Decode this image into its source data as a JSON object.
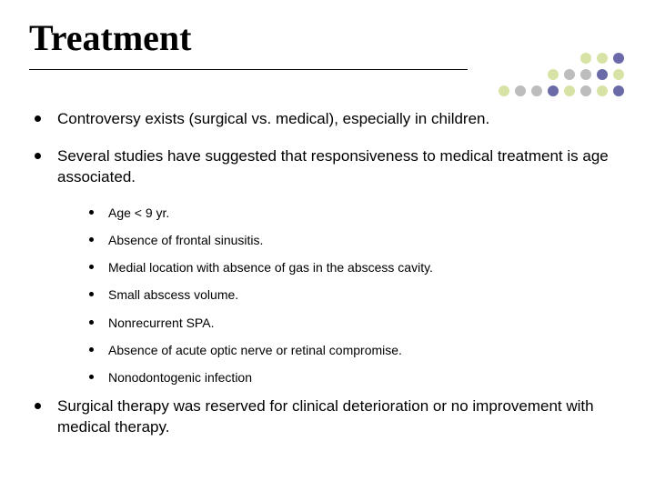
{
  "title": "Treatment",
  "bullets": {
    "b1": "Controversy exists (surgical vs. medical), especially in children.",
    "b2": "Several studies have suggested that responsiveness to medical treatment is age associated.",
    "b3": "Surgical therapy was reserved for clinical deterioration or no improvement with medical therapy."
  },
  "sub": {
    "s1": "Age < 9 yr.",
    "s2": "Absence of frontal sinusitis.",
    "s3": "Medial location with absence of gas in the abscess cavity.",
    "s4": "Small abscess volume.",
    "s5": "Nonrecurrent SPA.",
    "s6": "Absence of acute optic nerve or retinal compromise.",
    "s7": "Nonodontogenic infection"
  },
  "dot_colors": {
    "r0": [
      "",
      "",
      "",
      "",
      "",
      "#d6e3a5",
      "#d6e3a5",
      "#6a6aa8"
    ],
    "r1": [
      "",
      "",
      "",
      "#d6e3a5",
      "#bdbdbd",
      "#bdbdbd",
      "#6a6aa8",
      "#d6e3a5"
    ],
    "r2": [
      "#d6e3a5",
      "#bdbdbd",
      "#bdbdbd",
      "#6a6aa8",
      "#d6e3a5",
      "#bdbdbd",
      "#d6e3a5",
      "#6a6aa8"
    ]
  },
  "style": {
    "background": "#ffffff",
    "title_fontsize": 40,
    "title_font": "Times New Roman",
    "lvl1_fontsize": 17,
    "lvl2_fontsize": 14,
    "underline_color": "#000000"
  }
}
